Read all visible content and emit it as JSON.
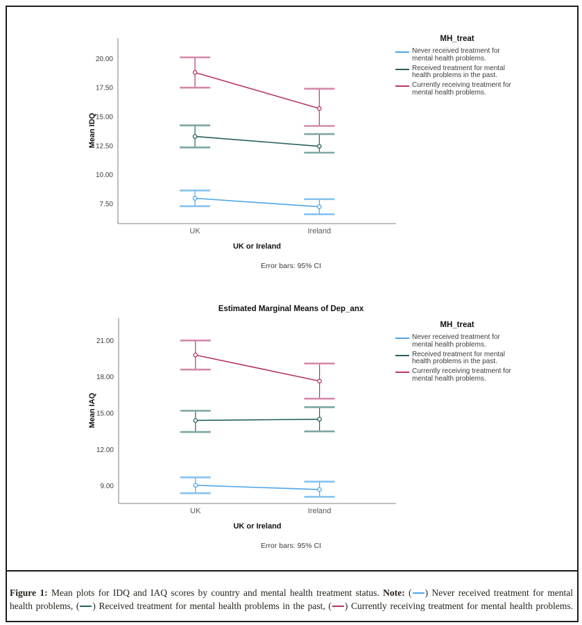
{
  "legend": {
    "title": "MH_treat",
    "entries": [
      {
        "label": "Never received treatment for mental health problems.",
        "color": "#4DA5E8"
      },
      {
        "label": "Received treatment for mental health problems in the past.",
        "color": "#26605E"
      },
      {
        "label": "Currently receiving treatment for mental health problems.",
        "color": "#B73568"
      }
    ]
  },
  "chart_data": [
    {
      "type": "line",
      "title": "",
      "ylabel": "Mean IDQ",
      "xlabel": "UK or Ireland",
      "footnote": "Error bars: 95% CI",
      "categories": [
        "UK",
        "Ireland"
      ],
      "ylim": [
        5.8,
        21.75
      ],
      "grid": false,
      "legend_position": "right",
      "yticks": [
        {
          "value": 7.5,
          "label": "7.50"
        },
        {
          "value": 10.0,
          "label": "10.00"
        },
        {
          "value": 12.5,
          "label": "12.50"
        },
        {
          "value": 15.0,
          "label": "15.00"
        },
        {
          "value": 17.5,
          "label": "17.50"
        },
        {
          "value": 20.0,
          "label": "20.00"
        }
      ],
      "series": [
        {
          "name": "Never received treatment for mental health problems.",
          "values": [
            7.98,
            7.25
          ],
          "ci_low": [
            7.3,
            6.6
          ],
          "ci_high": [
            8.65,
            7.9
          ],
          "color": "#4DA5E8",
          "cap_color": "#86C2EF"
        },
        {
          "name": "Received treatment for mental health problems in the past.",
          "values": [
            13.3,
            12.45
          ],
          "ci_low": [
            12.35,
            11.9
          ],
          "ci_high": [
            14.25,
            13.5
          ],
          "color": "#26605E",
          "cap_color": "#7BA5A3"
        },
        {
          "name": "Currently receiving treatment for mental health problems.",
          "values": [
            18.8,
            15.7
          ],
          "ci_low": [
            17.5,
            14.2
          ],
          "ci_high": [
            20.1,
            17.4
          ],
          "color": "#B73568",
          "cap_color": "#D488A9"
        }
      ]
    },
    {
      "type": "line",
      "title": "Estimated Marginal Means of Dep_anx",
      "ylabel": "Mean IAQ",
      "xlabel": "UK or Ireland",
      "footnote": "Error bars: 95% CI",
      "categories": [
        "UK",
        "Ireland"
      ],
      "ylim": [
        7.55,
        22.85
      ],
      "grid": false,
      "legend_position": "right",
      "yticks": [
        {
          "value": 9.0,
          "label": "9.00"
        },
        {
          "value": 12.0,
          "label": "12.00"
        },
        {
          "value": 15.0,
          "label": "15.00"
        },
        {
          "value": 18.0,
          "label": "18.00"
        },
        {
          "value": 21.0,
          "label": "21.00"
        }
      ],
      "series": [
        {
          "name": "Never received treatment for mental health problems.",
          "values": [
            9.05,
            8.7
          ],
          "ci_low": [
            8.4,
            8.1
          ],
          "ci_high": [
            9.7,
            9.35
          ],
          "color": "#4DA5E8",
          "cap_color": "#86C2EF"
        },
        {
          "name": "Received treatment for mental health problems in the past.",
          "values": [
            14.4,
            14.5
          ],
          "ci_low": [
            13.45,
            13.5
          ],
          "ci_high": [
            15.2,
            15.5
          ],
          "color": "#26605E",
          "cap_color": "#7BA5A3"
        },
        {
          "name": "Currently receiving treatment for mental health problems.",
          "values": [
            19.8,
            17.65
          ],
          "ci_low": [
            18.6,
            16.2
          ],
          "ci_high": [
            21.0,
            19.1
          ],
          "color": "#B73568",
          "cap_color": "#D488A9"
        }
      ]
    }
  ],
  "caption": {
    "figure_label": "Figure 1:",
    "intro": " Mean plots for IDQ and IAQ scores by country and mental health treatment status. ",
    "note_label": "Note:",
    "open1": " (",
    "after1": ") Never received treatment for mental",
    "line2_start": "health problems, (",
    "after2": ") Received treatment for mental health problems in the past, (",
    "after3": ") Currently receiving treatment for mental health problems.",
    "colors": {
      "never": "#4DA5E8",
      "past": "#26605E",
      "current": "#B73568"
    }
  }
}
